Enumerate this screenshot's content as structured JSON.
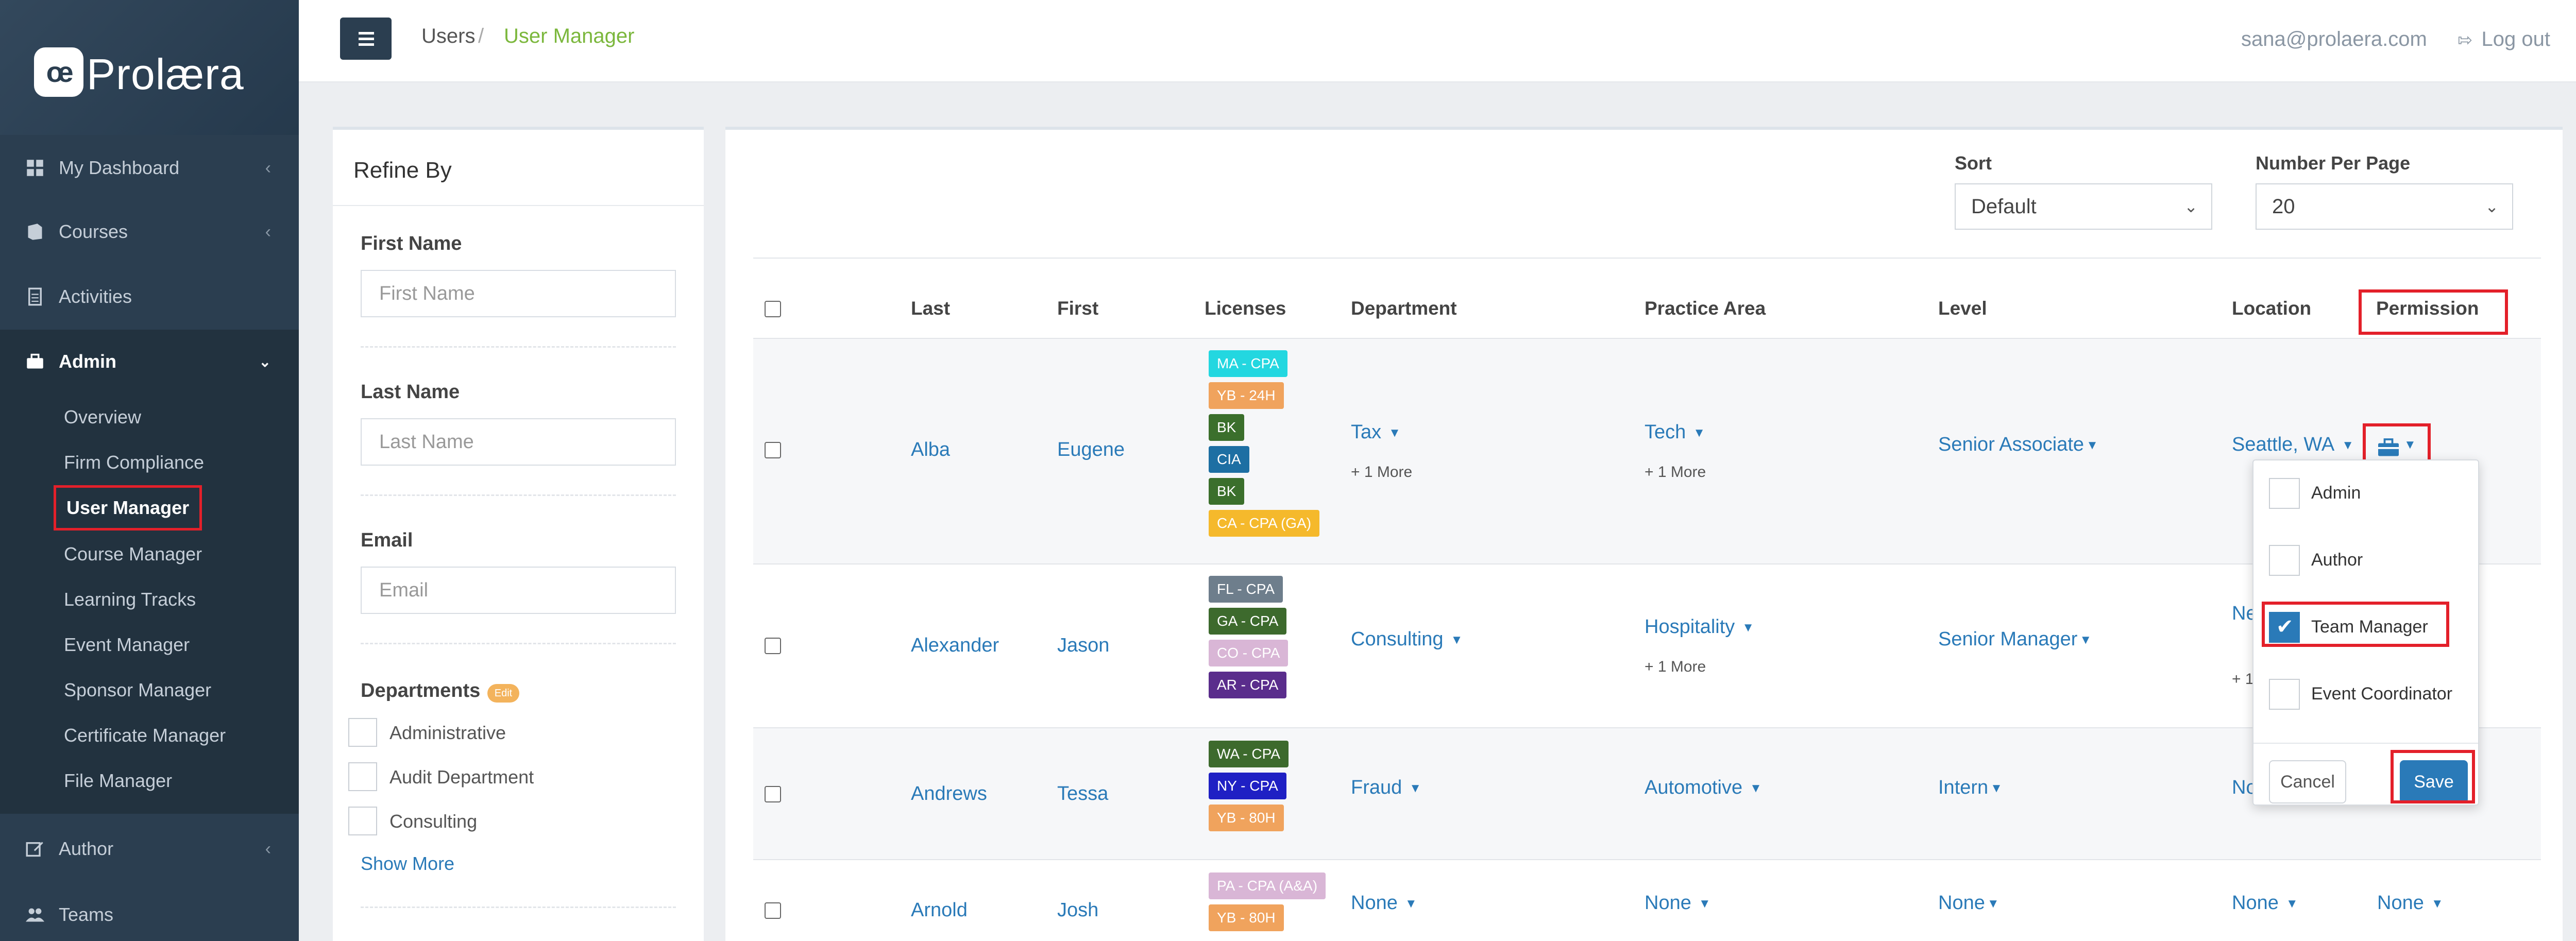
{
  "brand": {
    "mark": "œ",
    "name": "Prolæra"
  },
  "sidebar": {
    "items": [
      {
        "label": "My Dashboard",
        "icon": "grid-icon"
      },
      {
        "label": "Courses",
        "icon": "book-icon"
      },
      {
        "label": "Activities",
        "icon": "document-icon"
      },
      {
        "label": "Admin",
        "icon": "briefcase-icon"
      },
      {
        "label": "Author",
        "icon": "edit-icon"
      },
      {
        "label": "Teams",
        "icon": "users-icon"
      }
    ],
    "admin_sub": [
      "Overview",
      "Firm Compliance",
      "User Manager",
      "Course Manager",
      "Learning Tracks",
      "Event Manager",
      "Sponsor Manager",
      "Certificate Manager",
      "File Manager"
    ]
  },
  "topbar": {
    "crumb1": "Users",
    "crumb_sep": "/",
    "crumb2": "User Manager",
    "email": "sana@prolaera.com",
    "logout": "Log out"
  },
  "refine": {
    "title": "Refine By",
    "first_name": {
      "label": "First Name",
      "placeholder": "First Name"
    },
    "last_name": {
      "label": "Last Name",
      "placeholder": "Last Name"
    },
    "email": {
      "label": "Email",
      "placeholder": "Email"
    },
    "departments_label": "Departments",
    "edit_badge": "Edit",
    "departments": [
      "Administrative",
      "Audit Department",
      "Consulting"
    ],
    "show_more": "Show More"
  },
  "controls": {
    "sort_label": "Sort",
    "sort_value": "Default",
    "per_page_label": "Number Per Page",
    "per_page_value": "20"
  },
  "table": {
    "headers": {
      "last": "Last",
      "first": "First",
      "licenses": "Licenses",
      "department": "Department",
      "practice": "Practice Area",
      "level": "Level",
      "location": "Location",
      "permission": "Permission"
    },
    "rows": [
      {
        "last": "Alba",
        "first": "Eugene",
        "licenses": [
          {
            "text": "MA - CPA",
            "color": "#23d7e0"
          },
          {
            "text": "YB - 24H",
            "color": "#f0a35d"
          },
          {
            "text": "BK",
            "color": "#3b6f2c"
          },
          {
            "text": "CIA",
            "color": "#1d6fa3"
          },
          {
            "text": "BK",
            "color": "#3b6f2c"
          },
          {
            "text": "CA - CPA (GA)",
            "color": "#f5b92c"
          }
        ],
        "department": "Tax",
        "department_more": "+ 1 More",
        "practice": "Tech",
        "practice_more": "+ 1 More",
        "level": "Senior Associate",
        "location": "Seattle, WA"
      },
      {
        "last": "Alexander",
        "first": "Jason",
        "licenses": [
          {
            "text": "FL - CPA",
            "color": "#6e7e8c"
          },
          {
            "text": "GA - CPA",
            "color": "#3d6a2d"
          },
          {
            "text": "CO - CPA",
            "color": "#d9b6d6"
          },
          {
            "text": "AR - CPA",
            "color": "#5a2d8c"
          }
        ],
        "department": "Consulting",
        "department_more": "",
        "practice": "Hospitality",
        "practice_more": "+ 1 More",
        "level": "Senior Manager",
        "location": "Ne",
        "location_more": "+ 1"
      },
      {
        "last": "Andrews",
        "first": "Tessa",
        "licenses": [
          {
            "text": "WA - CPA",
            "color": "#3d6a2d"
          },
          {
            "text": "NY - CPA",
            "color": "#1f20c4"
          },
          {
            "text": "YB - 80H",
            "color": "#f0a35d"
          }
        ],
        "department": "Fraud",
        "department_more": "",
        "practice": "Automotive",
        "practice_more": "",
        "level": "Intern",
        "location": "No"
      },
      {
        "last": "Arnold",
        "first": "Josh",
        "licenses": [
          {
            "text": "PA - CPA (A&A)",
            "color": "#d9b6d6"
          },
          {
            "text": "YB - 80H",
            "color": "#f0a35d"
          }
        ],
        "department": "None",
        "practice": "None",
        "level": "None",
        "location": "None",
        "permission": "None"
      }
    ]
  },
  "permission_popover": {
    "options": [
      {
        "label": "Admin",
        "checked": false
      },
      {
        "label": "Author",
        "checked": false
      },
      {
        "label": "Team Manager",
        "checked": true
      },
      {
        "label": "Event Coordinator",
        "checked": false
      }
    ],
    "cancel": "Cancel",
    "save": "Save"
  },
  "colors": {
    "sidebar": "#2b3e50",
    "link": "#2a7ab8",
    "accent_green": "#7bb73c",
    "highlight": "#e3202a"
  }
}
